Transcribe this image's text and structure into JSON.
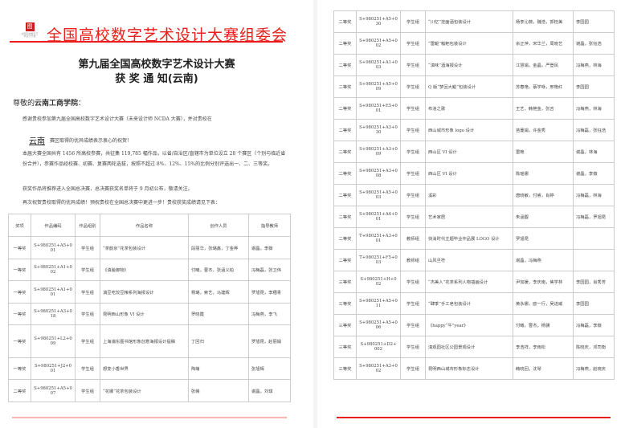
{
  "header": {
    "organizer": "全国高校数字艺术设计大赛组委会",
    "logo_text": "全国高校数字艺术设计大赛"
  },
  "title": {
    "line1": "第九届全国高校数字艺术设计大赛",
    "line2": "获 奖 通 知(云南)"
  },
  "greeting": {
    "prefix": "尊敬的",
    "school": "云南工商学院",
    "suffix": "："
  },
  "body": {
    "p1": "感谢贵校参加第九届全国高校数字艺术设计大赛（未来设计师 NCDA 大赛），并对贵校在",
    "region": "云南",
    "p1b": "赛区取得的优异成绩表示衷心的祝贺！",
    "p2": "本届大赛全国共有 1456 所高校参赛，共征集 119,785 幅作品，以省/自治区/直辖市为单位设立 28 个赛区（个别与临近省份合并），参赛作品经校赛、初赛、复赛两轮选拔，按照不超过 8%、12%、15%的比例分别评选出一、二、三等奖。",
    "p3": "获奖作品将推荐进入全国总决赛，总决赛获奖名单将于 9 月初公布，敬请关注。",
    "p4": "再次祝贺贵校取得的优异成绩！预祝贵校在全国总决赛中更进一步！贵校获奖成绩请见下表："
  },
  "table": {
    "headers": [
      "奖项",
      "作品编码",
      "作品组别",
      "作品名称",
      "创作人员",
      "指导教师"
    ],
    "rows_page1": [
      [
        "一等奖",
        "S+980251+A5+001",
        "学生组",
        "“茶韵京”花茶包装设计",
        "段丽华，张璐鑫，丁金桦",
        "谢晶，李薇"
      ],
      [
        "一等奖",
        "S+980251+A1+002",
        "学生组",
        "《滇脍御物》",
        "付曦，曹杰，张涵义柏",
        "冯梅磊，张卫伟"
      ],
      [
        "一等奖",
        "S+980251+A1+001",
        "学生组",
        "滇豆吃饺豆粮系列海报设计",
        "杨璐，索艺，马建辉",
        "罗旭昆，李穗青"
      ],
      [
        "一等奖",
        "S+980251+A3+018",
        "学生组",
        "昆明西山形象 VI 设计",
        "罗晓霞",
        "冯梅燕，李飞"
      ],
      [
        "一等奖",
        "S+980251+L2+009",
        "学生组",
        "上海浦东图书馆形象创意海报设计提稿",
        "丁回归",
        "罗旭昆，赵丽娟"
      ],
      [
        "一等奖",
        "S+980251+J2+001",
        "学生组",
        "想变小香世界",
        "陶萌",
        "张旭辉"
      ],
      [
        "二等奖",
        "S+980251+A5+007",
        "学生组",
        "“花娜”花茶包装设计",
        "张赣",
        "谢晶，刘琪"
      ]
    ],
    "rows_page2": [
      [
        "二等奖",
        "S+980251+A5+030",
        "学生组",
        "“川忆”挂面酒包装设计",
        "杨李沁薇，魏浩，郭桂美",
        "李园园"
      ],
      [
        "二等奖",
        "S+980251+A5+002",
        "学生组",
        "“雷鲲”糍粑包装设计",
        "余正萍，宋华兰，周晓艺",
        "谢晶，张钰浩"
      ],
      [
        "二等奖",
        "S+980251+A1+003",
        "学生组",
        "“滇味”酒海报设计",
        "江慧娟，金晶，严登凤",
        "冯梅燕，林海"
      ],
      [
        "二等奖",
        "S+980251+A5+009",
        "学生组",
        "Q 版“梦回大鲲”包装设计",
        "苏春艳，蔡学咏，邢艳红",
        "李园园"
      ],
      [
        "二等奖",
        "S+980251+E5+001",
        "学生组",
        "布洛之歌",
        "王艺，韩艳金，张吉",
        "冯梅燕，林海"
      ],
      [
        "二等奖",
        "S+980251+A3+030",
        "学生组",
        "西山城市形象 logo 设计",
        "苔蔓娟，许金秀",
        "冯梅磊，张钰浩"
      ],
      [
        "二等奖",
        "S+980251+A3+009",
        "学生组",
        "西山区 VI 设计",
        "雷艳",
        "谢晶，林海"
      ],
      [
        "二等奖",
        "S+980251+A3+008",
        "学生组",
        "西山区 VI 设计",
        "陈瑶娜",
        "谢晶，李薇"
      ],
      [
        "二等奖",
        "S+980251+A5+003",
        "学生组",
        "溪彩",
        "唐晓敏，付睿，肖婷",
        "冯梅磊，林海"
      ],
      [
        "二等奖",
        "S+980251+A4+001",
        "学生组",
        "艺术家居",
        "朱涵馥",
        "冯梅磊，罗旭昆"
      ],
      [
        "二等奖",
        "T+980251+A3+001",
        "教师组",
        "快消时代主题毕业作品展 LOGO 设计",
        "罗旭昆",
        ""
      ],
      [
        "二等奖",
        "T+980251+F5+003",
        "教师组",
        "山风旦符",
        "谢晶，冯梅燕",
        ""
      ],
      [
        "三等奖",
        "S+980251+H+002",
        "学生组",
        "“杰美人”花茶系列人物插画设计",
        "尹加媛，李庆南，焦学林",
        "李园园，肖秀芳"
      ],
      [
        "三等奖",
        "S+980251+A5+011",
        "学生组",
        "“肆季”手工皂包装设计",
        "黄永娜，欧一行，吴进威",
        "李园园"
      ],
      [
        "三等奖",
        "S+980251+A5+006",
        "学生组",
        "《happy“牛”year》",
        "付曦，曹杰，杨骥",
        "冯梅磊，李薇"
      ],
      [
        "三等奖",
        "S+980251+D2+002",
        "学生组",
        "滇观园社区公园景观设计",
        "李浩祥，李雨松",
        "陈晓庆，邓司衡"
      ],
      [
        "三等奖",
        "S+980251+A3+002",
        "学生组",
        "昆明西山城市形象标志设计",
        "韩晓回，沈琴",
        "冯梅燕，赵晓庆"
      ]
    ]
  },
  "colors": {
    "accent_red": "#e8201a"
  }
}
